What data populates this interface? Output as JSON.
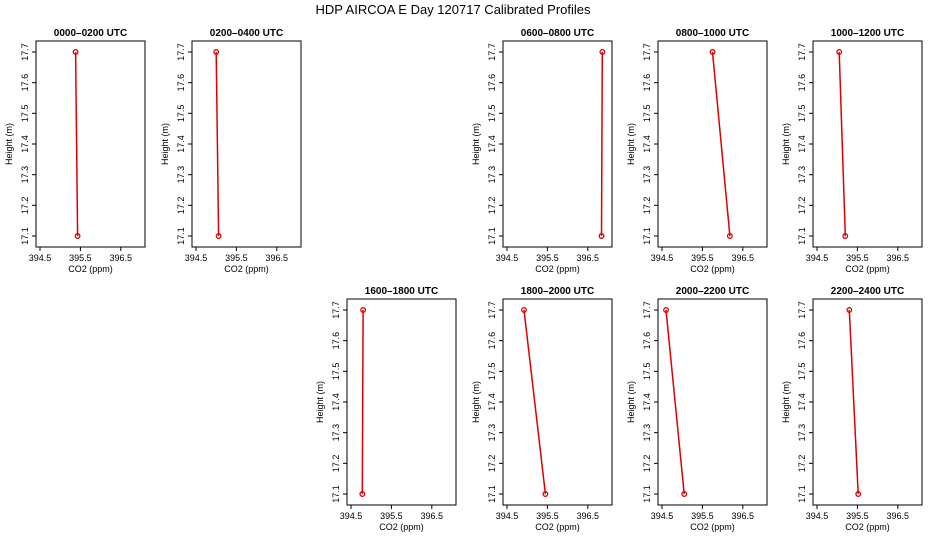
{
  "figure": {
    "title": "HDP AIRCOA E  Day 120717  Calibrated Profiles"
  },
  "chart_data": [
    {
      "type": "line",
      "title": "0000–0200 UTC",
      "xlabel": "CO2 (ppm)",
      "ylabel": "Height (m)",
      "xlim": [
        394.5,
        397.0
      ],
      "ylim": [
        17.1,
        17.7
      ],
      "x_ticks": [
        "394.5",
        "395.5",
        "396.5"
      ],
      "y_ticks": [
        "17.1",
        "17.2",
        "17.3",
        "17.4",
        "17.5",
        "17.6",
        "17.7"
      ],
      "series": [
        {
          "points": [
            {
              "x": 395.38,
              "y": 17.7
            },
            {
              "x": 395.43,
              "y": 17.1
            }
          ]
        }
      ]
    },
    {
      "type": "line",
      "title": "0200–0400 UTC",
      "xlabel": "CO2 (ppm)",
      "ylabel": "Height (m)",
      "xlim": [
        394.5,
        397.0
      ],
      "ylim": [
        17.1,
        17.7
      ],
      "x_ticks": [
        "394.5",
        "395.5",
        "396.5"
      ],
      "y_ticks": [
        "17.1",
        "17.2",
        "17.3",
        "17.4",
        "17.5",
        "17.6",
        "17.7"
      ],
      "series": [
        {
          "points": [
            {
              "x": 395.0,
              "y": 17.7
            },
            {
              "x": 395.06,
              "y": 17.1
            }
          ]
        }
      ]
    },
    {
      "type": "line",
      "title": "0600–0800 UTC",
      "xlabel": "CO2 (ppm)",
      "ylabel": "Height (m)",
      "xlim": [
        394.5,
        397.0
      ],
      "ylim": [
        17.1,
        17.7
      ],
      "x_ticks": [
        "394.5",
        "395.5",
        "396.5"
      ],
      "y_ticks": [
        "17.1",
        "17.2",
        "17.3",
        "17.4",
        "17.5",
        "17.6",
        "17.7"
      ],
      "series": [
        {
          "points": [
            {
              "x": 396.86,
              "y": 17.7
            },
            {
              "x": 396.84,
              "y": 17.1
            }
          ]
        }
      ]
    },
    {
      "type": "line",
      "title": "0800–1000 UTC",
      "xlabel": "CO2 (ppm)",
      "ylabel": "Height (m)",
      "xlim": [
        394.5,
        397.0
      ],
      "ylim": [
        17.1,
        17.7
      ],
      "x_ticks": [
        "394.5",
        "395.5",
        "396.5"
      ],
      "y_ticks": [
        "17.1",
        "17.2",
        "17.3",
        "17.4",
        "17.5",
        "17.6",
        "17.7"
      ],
      "series": [
        {
          "points": [
            {
              "x": 395.75,
              "y": 17.7
            },
            {
              "x": 396.18,
              "y": 17.1
            }
          ]
        }
      ]
    },
    {
      "type": "line",
      "title": "1000–1200 UTC",
      "xlabel": "CO2 (ppm)",
      "ylabel": "Height (m)",
      "xlim": [
        394.5,
        397.0
      ],
      "ylim": [
        17.1,
        17.7
      ],
      "x_ticks": [
        "394.5",
        "395.5",
        "396.5"
      ],
      "y_ticks": [
        "17.1",
        "17.2",
        "17.3",
        "17.4",
        "17.5",
        "17.6",
        "17.7"
      ],
      "series": [
        {
          "points": [
            {
              "x": 395.05,
              "y": 17.7
            },
            {
              "x": 395.2,
              "y": 17.1
            }
          ]
        }
      ]
    },
    {
      "type": "line",
      "title": "1600–1800 UTC",
      "xlabel": "CO2 (ppm)",
      "ylabel": "Height (m)",
      "xlim": [
        394.5,
        397.0
      ],
      "ylim": [
        17.1,
        17.7
      ],
      "x_ticks": [
        "394.5",
        "395.5",
        "396.5"
      ],
      "y_ticks": [
        "17.1",
        "17.2",
        "17.3",
        "17.4",
        "17.5",
        "17.6",
        "17.7"
      ],
      "series": [
        {
          "points": [
            {
              "x": 394.8,
              "y": 17.7
            },
            {
              "x": 394.78,
              "y": 17.1
            }
          ]
        }
      ]
    },
    {
      "type": "line",
      "title": "1800–2000 UTC",
      "xlabel": "CO2 (ppm)",
      "ylabel": "Height (m)",
      "xlim": [
        394.5,
        397.0
      ],
      "ylim": [
        17.1,
        17.7
      ],
      "x_ticks": [
        "394.5",
        "395.5",
        "396.5"
      ],
      "y_ticks": [
        "17.1",
        "17.2",
        "17.3",
        "17.4",
        "17.5",
        "17.6",
        "17.7"
      ],
      "series": [
        {
          "points": [
            {
              "x": 394.92,
              "y": 17.7
            },
            {
              "x": 395.45,
              "y": 17.1
            }
          ]
        }
      ]
    },
    {
      "type": "line",
      "title": "2000–2200 UTC",
      "xlabel": "CO2 (ppm)",
      "ylabel": "Height (m)",
      "xlim": [
        394.5,
        397.0
      ],
      "ylim": [
        17.1,
        17.7
      ],
      "x_ticks": [
        "394.5",
        "395.5",
        "396.5"
      ],
      "y_ticks": [
        "17.1",
        "17.2",
        "17.3",
        "17.4",
        "17.5",
        "17.6",
        "17.7"
      ],
      "series": [
        {
          "points": [
            {
              "x": 394.6,
              "y": 17.7
            },
            {
              "x": 395.05,
              "y": 17.1
            }
          ]
        }
      ]
    },
    {
      "type": "line",
      "title": "2200–2400 UTC",
      "xlabel": "CO2 (ppm)",
      "ylabel": "Height (m)",
      "xlim": [
        394.5,
        397.0
      ],
      "ylim": [
        17.1,
        17.7
      ],
      "x_ticks": [
        "394.5",
        "395.5",
        "396.5"
      ],
      "y_ticks": [
        "17.1",
        "17.2",
        "17.3",
        "17.4",
        "17.5",
        "17.6",
        "17.7"
      ],
      "series": [
        {
          "points": [
            {
              "x": 395.3,
              "y": 17.7
            },
            {
              "x": 395.52,
              "y": 17.1
            }
          ]
        }
      ]
    }
  ]
}
